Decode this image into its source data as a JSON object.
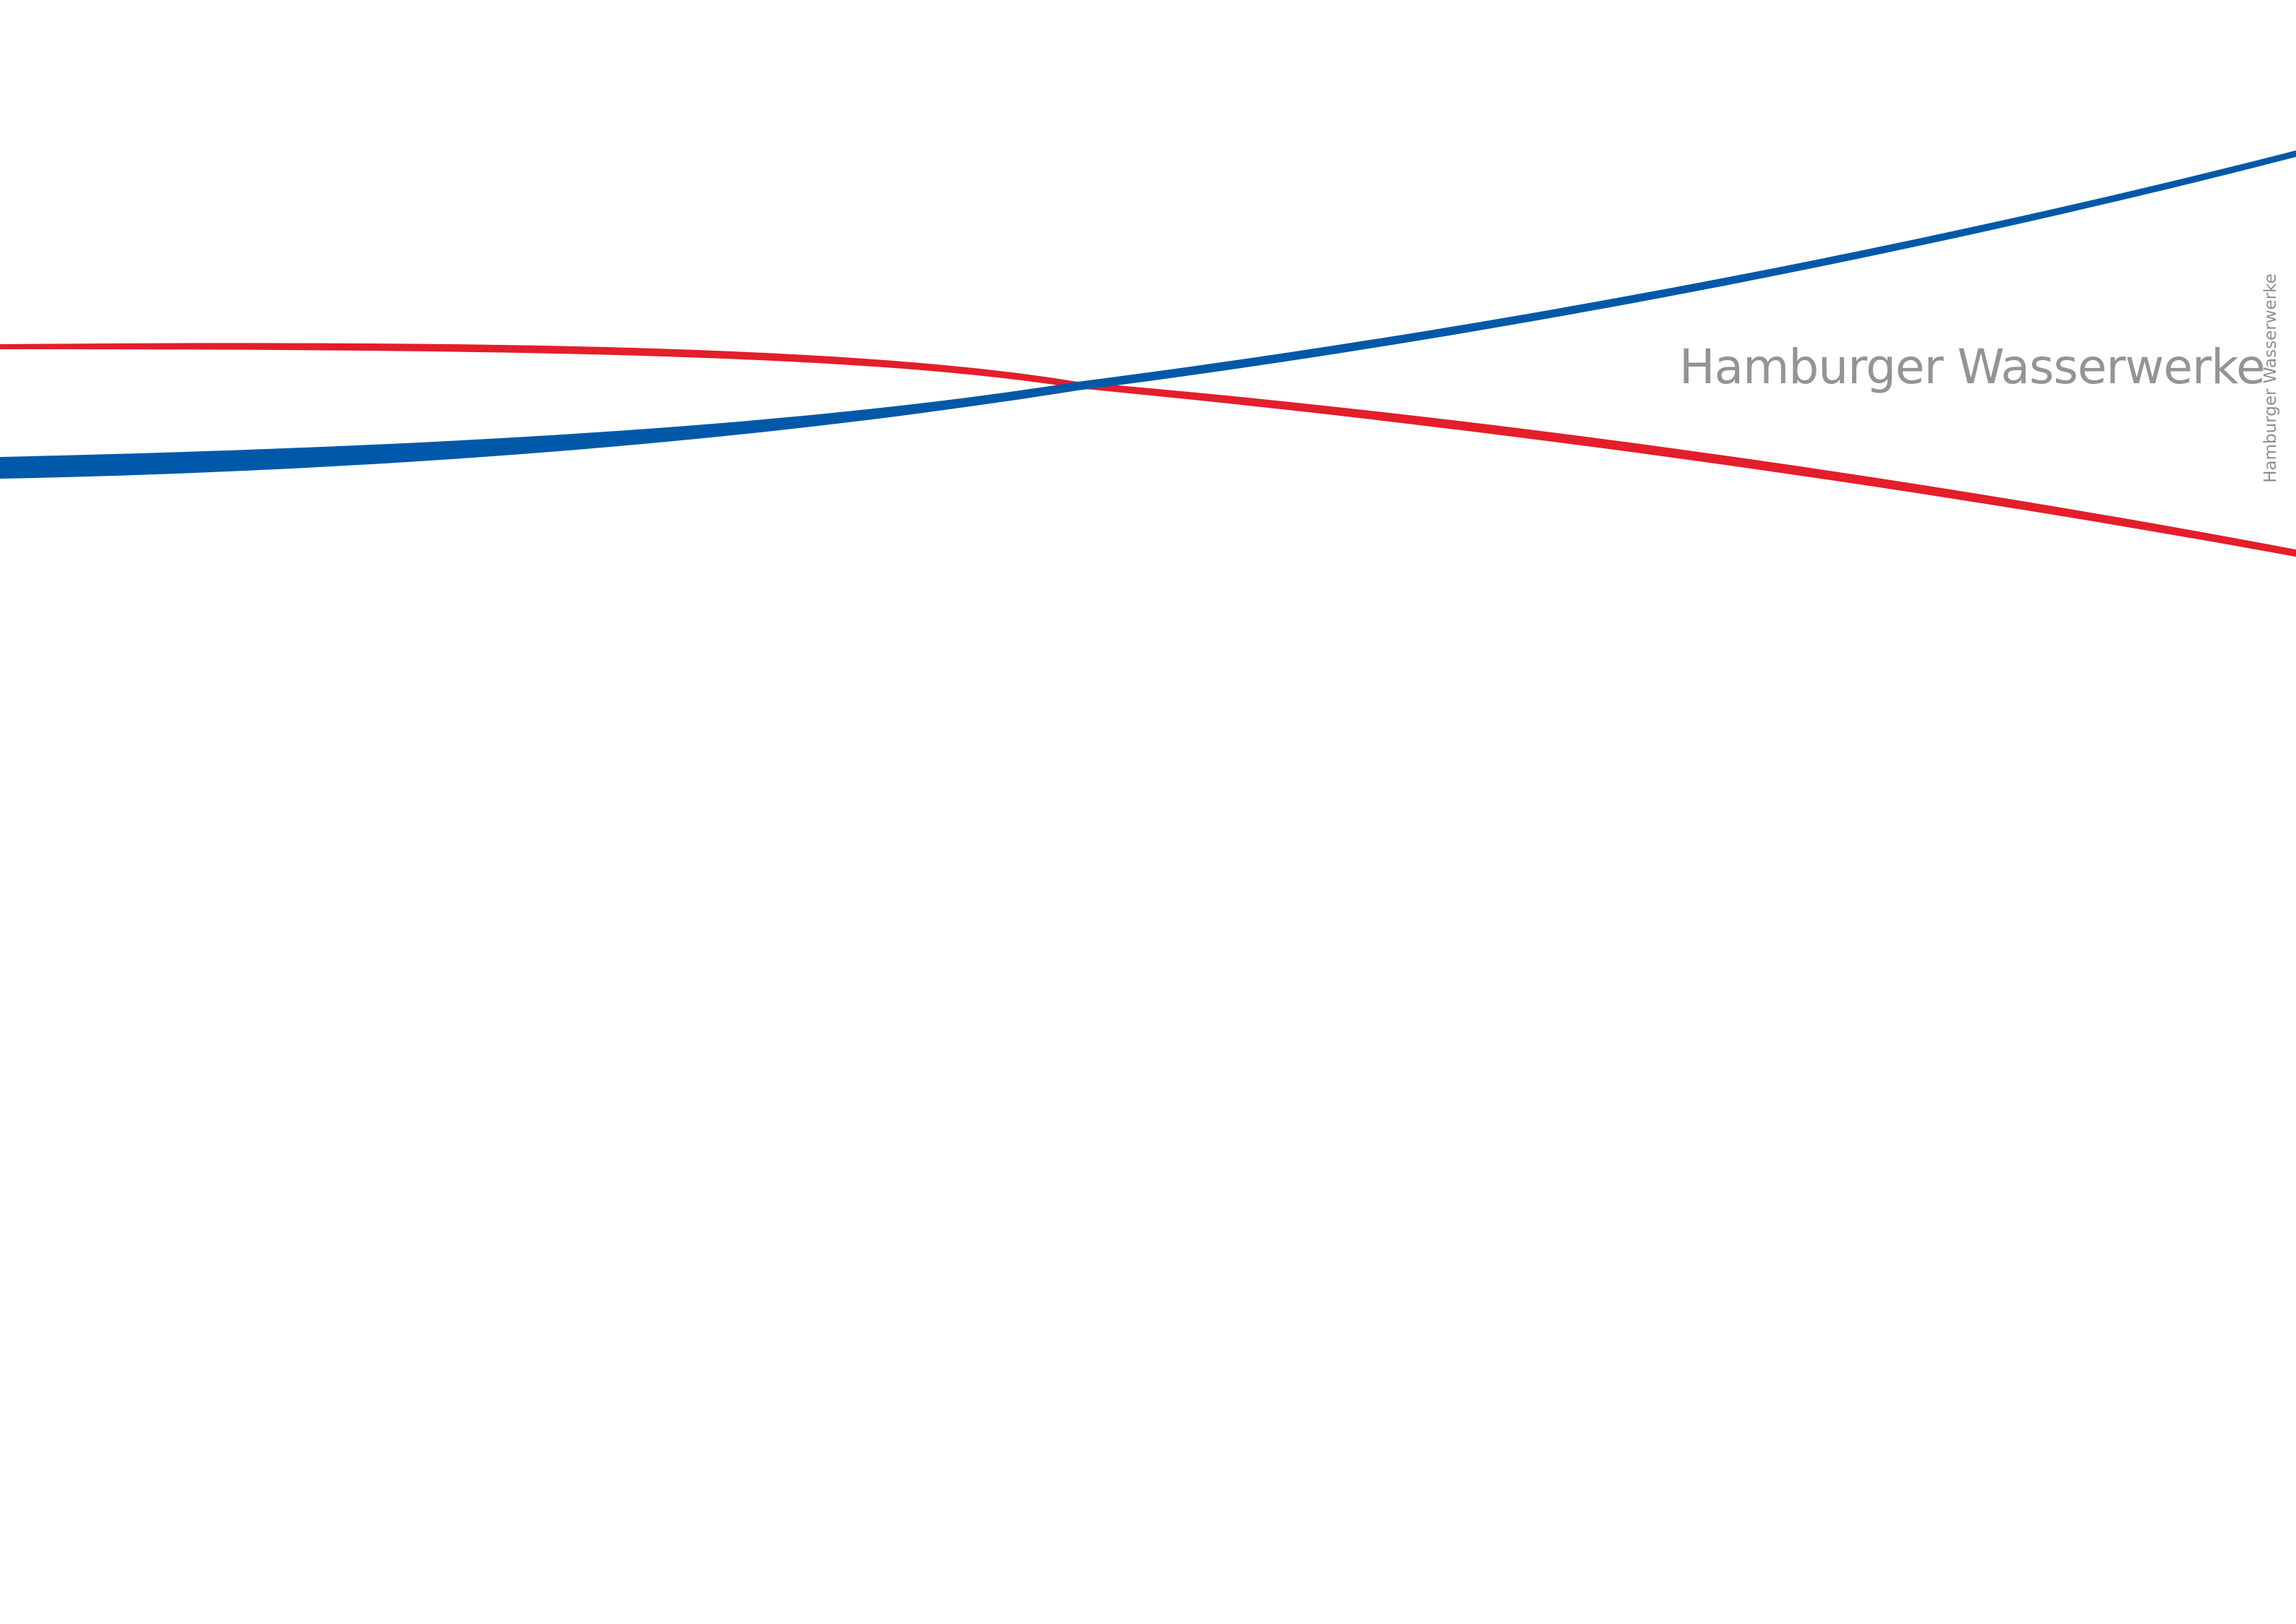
{
  "brand": {
    "name": "Hamburger Wasserwerke",
    "name_vertical": "Hamburger Wasserwerke"
  },
  "colors": {
    "background": "#ffffff",
    "blue_line": "#0059a8",
    "red_line": "#e41e2b",
    "brand_text": "#929496"
  }
}
